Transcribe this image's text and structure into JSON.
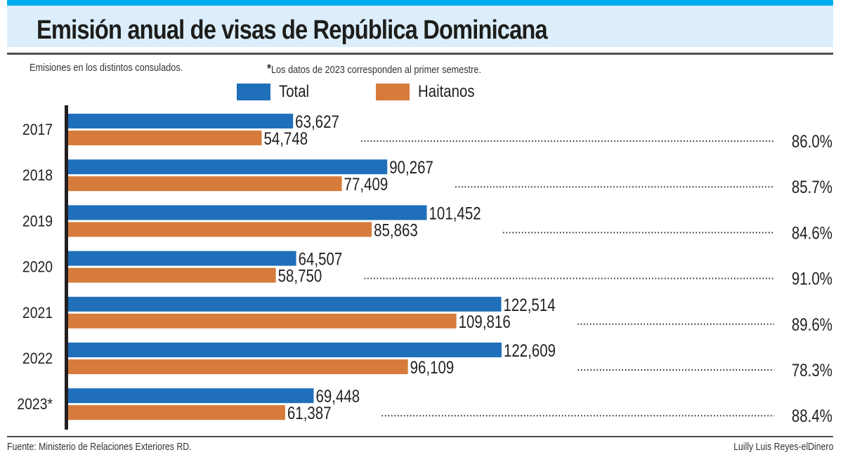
{
  "header": {
    "title": "Emisión anual de visas de República Dominicana",
    "subtitle": "Emisiones en los distintos consulados.",
    "note_star": "*",
    "note": "Los datos de 2023 corresponden al primer semestre."
  },
  "footer": {
    "source": "Fuente: Ministerio de Relaciones Exteriores RD.",
    "credit": "Luilly Luis Reyes-elDinero"
  },
  "colors": {
    "total": "#1f6fba",
    "haitianos": "#d67b3b",
    "accent_bar": "#00aeef",
    "title_bg": "#dceefb"
  },
  "chart_data": {
    "type": "bar",
    "orientation": "horizontal",
    "title": "Emisión anual de visas de República Dominicana",
    "xlabel": "",
    "ylabel": "",
    "grid": false,
    "legend": {
      "placement": "top",
      "entries": [
        "Total",
        "Haitanos"
      ]
    },
    "categories": [
      "2017",
      "2018",
      "2019",
      "2020",
      "2021",
      "2022",
      "2023*"
    ],
    "series": [
      {
        "name": "Total",
        "values": [
          63627,
          90267,
          101452,
          64507,
          122514,
          122609,
          69448
        ],
        "labels": [
          "63,627",
          "90,267",
          "101,452",
          "64,507",
          "122,514",
          "122,609",
          "69,448"
        ]
      },
      {
        "name": "Haitanos",
        "values": [
          54748,
          77409,
          85863,
          58750,
          109816,
          96109,
          61387
        ],
        "labels": [
          "54,748",
          "77,409",
          "85,863",
          "58,750",
          "109,816",
          "96,109",
          "61,387"
        ]
      }
    ],
    "share_labels": [
      "86.0%",
      "85.7%",
      "84.6%",
      "91.0%",
      "89.6%",
      "78.3%",
      "88.4%"
    ],
    "share_values": [
      86.0,
      85.7,
      84.6,
      91.0,
      89.6,
      78.3,
      88.4
    ],
    "xlim": [
      0,
      122609
    ]
  }
}
